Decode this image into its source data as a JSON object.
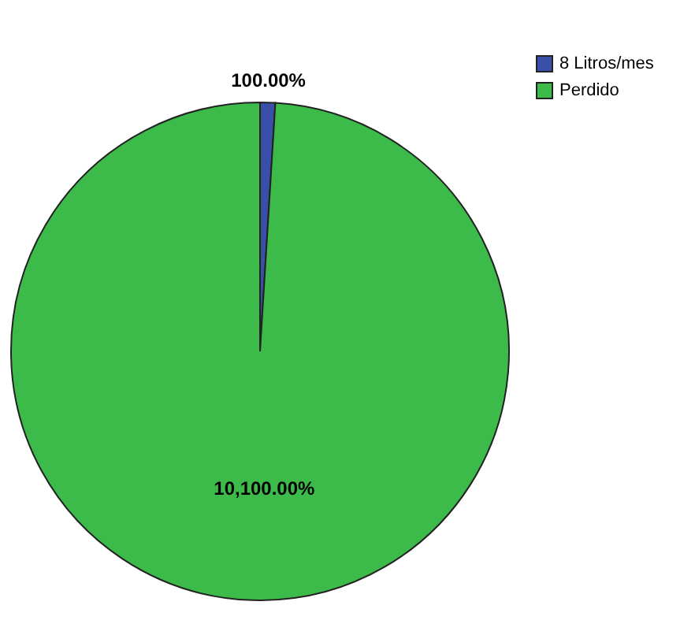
{
  "chart_data": {
    "type": "pie",
    "categories": [
      "8 Litros/mes",
      "Perdido"
    ],
    "values": [
      100,
      10100
    ],
    "colors": [
      "#3a4fa8",
      "#3dbb4a"
    ],
    "value_labels": [
      "100.00%",
      "10,100.00%"
    ],
    "legend": "top right"
  }
}
